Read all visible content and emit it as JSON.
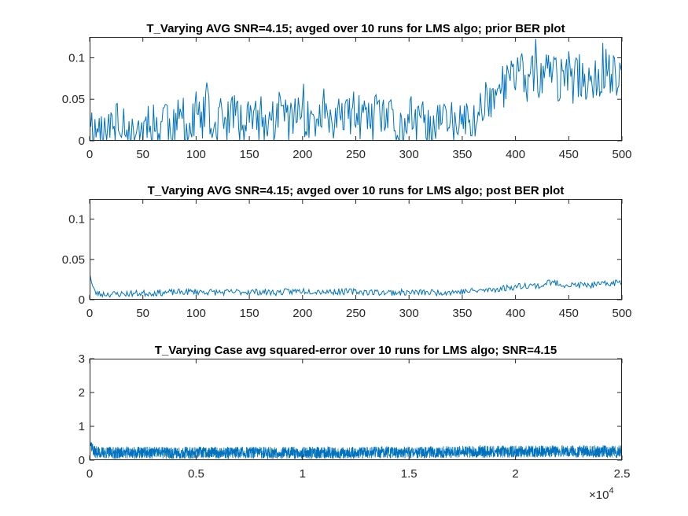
{
  "chart_data": [
    {
      "type": "line",
      "title": "T_Varying AVG SNR=4.15; avged over 10 runs for LMS algo; prior BER plot",
      "xlabel": "",
      "ylabel": "",
      "xlim": [
        0,
        500
      ],
      "ylim": [
        0,
        0.125
      ],
      "xticks": [
        0,
        50,
        100,
        150,
        200,
        250,
        300,
        350,
        400,
        450,
        500
      ],
      "xtick_labels": [
        "0",
        "50",
        "100",
        "150",
        "200",
        "250",
        "300",
        "350",
        "400",
        "450",
        "500"
      ],
      "yticks": [
        0,
        0.05,
        0.1
      ],
      "ytick_labels": [
        "0",
        "0.05",
        "0.1"
      ],
      "grid": false,
      "line_color": "#0072BD",
      "series": [
        {
          "x_anchor": [
            0,
            5,
            10,
            15,
            20,
            25,
            30,
            35,
            40,
            45,
            50,
            55,
            60,
            65,
            70,
            75,
            80,
            85,
            90,
            95,
            100,
            105,
            110,
            115,
            120,
            125,
            130,
            135,
            140,
            145,
            150,
            155,
            160,
            165,
            170,
            175,
            180,
            185,
            190,
            195,
            200,
            205,
            210,
            215,
            220,
            225,
            230,
            235,
            240,
            245,
            250,
            255,
            260,
            265,
            270,
            275,
            280,
            285,
            290,
            295,
            300,
            305,
            310,
            315,
            320,
            325,
            330,
            335,
            340,
            345,
            350,
            355,
            360,
            365,
            370,
            375,
            380,
            385,
            390,
            395,
            400,
            405,
            410,
            415,
            420,
            425,
            430,
            435,
            440,
            445,
            450,
            455,
            460,
            465,
            470,
            475,
            480,
            485,
            490,
            495,
            500
          ],
          "y_anchor": [
            0.03,
            0.01,
            0.02,
            0.0,
            0.02,
            0.01,
            0.03,
            0.02,
            0.0,
            0.02,
            0.01,
            0.03,
            0.02,
            0.01,
            0.04,
            0.02,
            0.01,
            0.03,
            0.02,
            0.01,
            0.03,
            0.02,
            0.04,
            0.01,
            0.02,
            0.03,
            0.02,
            0.04,
            0.02,
            0.01,
            0.03,
            0.02,
            0.03,
            0.01,
            0.03,
            0.02,
            0.04,
            0.03,
            0.02,
            0.03,
            0.04,
            0.02,
            0.03,
            0.02,
            0.04,
            0.03,
            0.01,
            0.03,
            0.02,
            0.03,
            0.04,
            0.02,
            0.03,
            0.02,
            0.03,
            0.02,
            0.03,
            0.02,
            0.01,
            0.02,
            0.02,
            0.01,
            0.02,
            0.03,
            0.01,
            0.02,
            0.02,
            0.03,
            0.02,
            0.01,
            0.03,
            0.02,
            0.02,
            0.03,
            0.05,
            0.05,
            0.06,
            0.06,
            0.07,
            0.07,
            0.08,
            0.08,
            0.07,
            0.08,
            0.08,
            0.07,
            0.09,
            0.08,
            0.07,
            0.08,
            0.08,
            0.07,
            0.08,
            0.07,
            0.08,
            0.07,
            0.08,
            0.09,
            0.08,
            0.07,
            0.09
          ],
          "noise_amplitude": 0.028
        }
      ]
    },
    {
      "type": "line",
      "title": "T_Varying AVG SNR=4.15; avged over 10 runs for LMS algo; post BER plot",
      "xlabel": "",
      "ylabel": "",
      "xlim": [
        0,
        500
      ],
      "ylim": [
        0,
        0.125
      ],
      "xticks": [
        0,
        50,
        100,
        150,
        200,
        250,
        300,
        350,
        400,
        450,
        500
      ],
      "xtick_labels": [
        "0",
        "50",
        "100",
        "150",
        "200",
        "250",
        "300",
        "350",
        "400",
        "450",
        "500"
      ],
      "yticks": [
        0,
        0.05,
        0.1
      ],
      "ytick_labels": [
        "0",
        "0.05",
        "0.1"
      ],
      "grid": false,
      "line_color": "#0072BD",
      "series": [
        {
          "x_anchor": [
            0,
            2,
            5,
            10,
            25,
            50,
            75,
            100,
            125,
            150,
            175,
            200,
            225,
            250,
            275,
            300,
            325,
            350,
            375,
            400,
            410,
            425,
            430,
            450,
            475,
            500
          ],
          "y_anchor": [
            0.035,
            0.02,
            0.009,
            0.007,
            0.007,
            0.008,
            0.009,
            0.01,
            0.009,
            0.01,
            0.009,
            0.011,
            0.01,
            0.01,
            0.009,
            0.009,
            0.009,
            0.01,
            0.012,
            0.016,
            0.018,
            0.017,
            0.022,
            0.018,
            0.018,
            0.022
          ],
          "noise_amplitude": 0.004
        }
      ]
    },
    {
      "type": "line",
      "title": "T_Varying Case avg squared-error over 10 runs for LMS algo; SNR=4.15",
      "xlabel": "",
      "ylabel": "",
      "xlim": [
        0,
        2.5
      ],
      "ylim": [
        0,
        3
      ],
      "x_exponent_base": "×10",
      "x_exponent_power": "4",
      "xticks": [
        0,
        0.5,
        1,
        1.5,
        2,
        2.5
      ],
      "xtick_labels": [
        "0",
        "0.5",
        "1",
        "1.5",
        "2",
        "2.5"
      ],
      "yticks": [
        0,
        1,
        2,
        3
      ],
      "ytick_labels": [
        "0",
        "1",
        "2",
        "3"
      ],
      "grid": false,
      "line_color": "#0072BD",
      "series": [
        {
          "x_anchor": [
            0,
            0.005,
            0.02,
            0.05,
            0.5,
            1.0,
            1.5,
            1.8,
            2.0,
            2.2,
            2.5
          ],
          "y_anchor": [
            0.9,
            0.5,
            0.25,
            0.22,
            0.22,
            0.22,
            0.23,
            0.25,
            0.25,
            0.26,
            0.26
          ],
          "noise_amplitude": 0.18
        }
      ]
    }
  ]
}
